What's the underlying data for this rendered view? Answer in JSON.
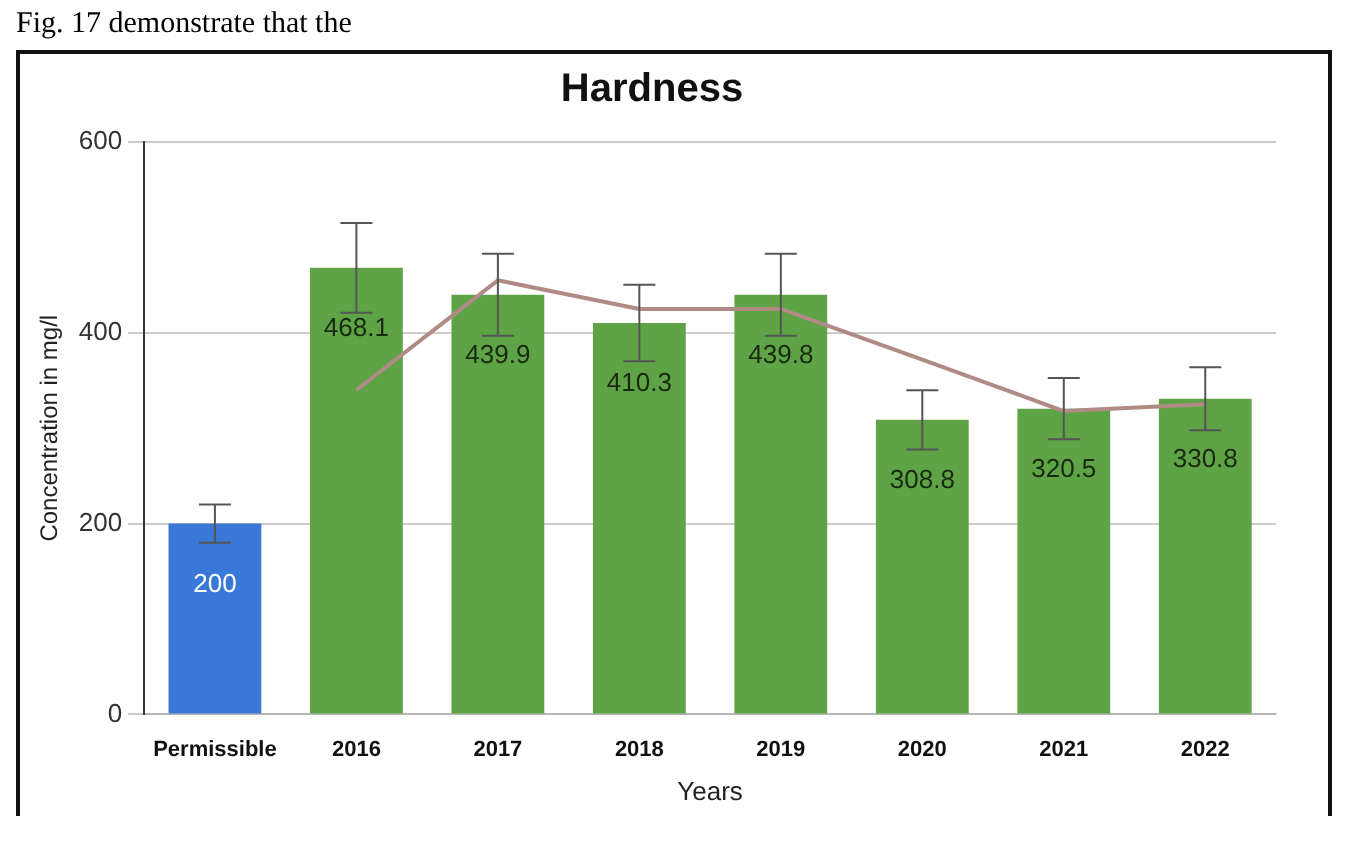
{
  "chart_data": {
    "type": "bar",
    "title": "Hardness",
    "xlabel": "Years",
    "ylabel": "Concentration in mg/l",
    "annotations": [
      "Fig. 17 demonstrate that the"
    ],
    "categories": [
      "Permissible",
      "2016",
      "2017",
      "2018",
      "2019",
      "2020",
      "2021",
      "2022"
    ],
    "series": [
      {
        "colors": [
          "#3a78d8",
          "#5fa347",
          "#5fa347",
          "#5fa347",
          "#5fa347",
          "#5fa347",
          "#5fa347",
          "#5fa347"
        ],
        "values": [
          200,
          468.1,
          439.9,
          410.3,
          439.8,
          308.8,
          320.5,
          330.8
        ],
        "errors": [
          20,
          47,
          43,
          40,
          43,
          31,
          32,
          33
        ],
        "value_labels": [
          "200",
          "468.1",
          "439.9",
          "410.3",
          "439.8",
          "308.8",
          "320.5",
          "330.8"
        ]
      },
      {
        "type": "line",
        "color": "#b08a84",
        "values": [
          null,
          340,
          455,
          425,
          425,
          372,
          318,
          325
        ]
      }
    ],
    "ylim": [
      0,
      600
    ],
    "yticks": [
      0,
      200,
      400,
      600
    ],
    "grid": "y",
    "legend": false
  }
}
